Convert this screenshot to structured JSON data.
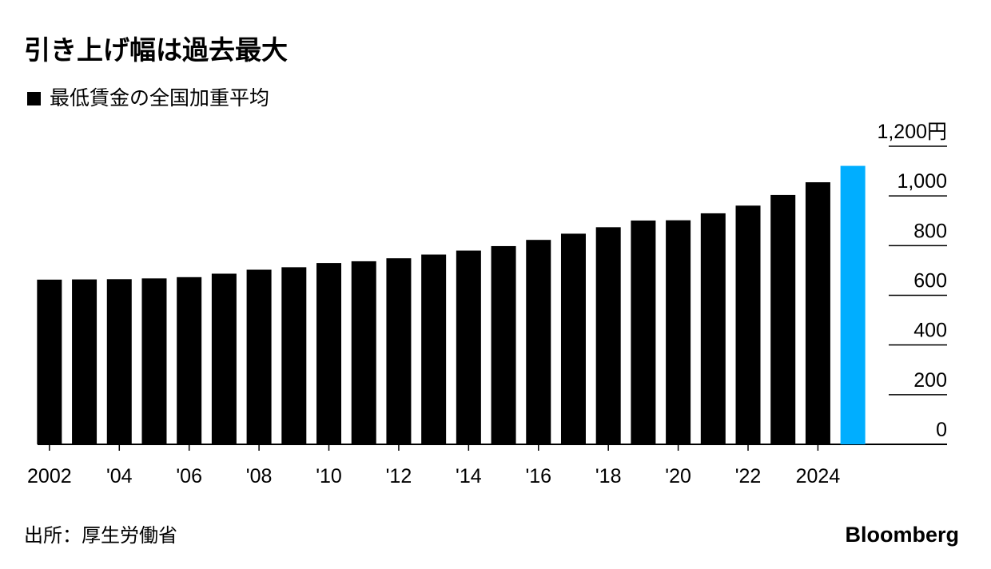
{
  "chart_data": {
    "type": "bar",
    "title": "引き上げ幅は過去最大",
    "legend": "最低賃金の全国加重平均",
    "legend_color": "#000000",
    "categories": [
      "2002",
      null,
      "'04",
      null,
      "'06",
      null,
      "'08",
      null,
      "'10",
      null,
      "'12",
      null,
      "'14",
      null,
      "'16",
      null,
      "'18",
      null,
      "'20",
      null,
      "'22",
      null,
      "2024",
      null
    ],
    "values": [
      663,
      664,
      665,
      668,
      673,
      687,
      703,
      713,
      730,
      737,
      749,
      764,
      780,
      798,
      823,
      848,
      874,
      901,
      902,
      930,
      961,
      1004,
      1055,
      1121
    ],
    "colors": [
      "#000000",
      "#000000",
      "#000000",
      "#000000",
      "#000000",
      "#000000",
      "#000000",
      "#000000",
      "#000000",
      "#000000",
      "#000000",
      "#000000",
      "#000000",
      "#000000",
      "#000000",
      "#000000",
      "#000000",
      "#000000",
      "#000000",
      "#000000",
      "#000000",
      "#000000",
      "#000000",
      "#00aeff"
    ],
    "ylim": [
      0,
      1200
    ],
    "yticks": [
      0,
      200,
      400,
      600,
      800,
      {
        "value": 1000,
        "label": "1,000"
      },
      {
        "value": 1200,
        "label": "1,200円"
      }
    ],
    "y_axis_side": "right",
    "grid": true,
    "source": "出所：厚生労働省",
    "brand": "Bloomberg"
  }
}
